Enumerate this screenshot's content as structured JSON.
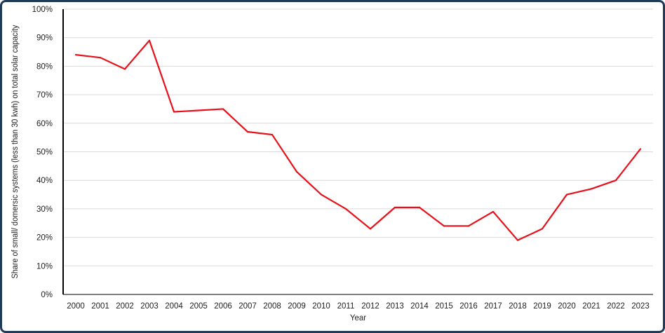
{
  "chart_data": {
    "type": "line",
    "xlabel": "Year",
    "ylabel": "Share of small/ domersic systems (less than 30 kwh) on total solar capacity",
    "ylim": [
      0,
      100
    ],
    "yticks": [
      "0%",
      "10%",
      "20%",
      "30%",
      "40%",
      "50%",
      "60%",
      "70%",
      "80%",
      "90%",
      "100%"
    ],
    "grid": true,
    "categories": [
      "2000",
      "2001",
      "2002",
      "2003",
      "2004",
      "2005",
      "2006",
      "2007",
      "2008",
      "2009",
      "2010",
      "2011",
      "2012",
      "2013",
      "2014",
      "2015",
      "2016",
      "2017",
      "2018",
      "2019",
      "2020",
      "2021",
      "2022",
      "2023"
    ],
    "series": [
      {
        "color": "#e8101a",
        "values": [
          84,
          83,
          79,
          89,
          64,
          64.5,
          65,
          57,
          56,
          43,
          35,
          30,
          23,
          30.5,
          30.5,
          24,
          24,
          29,
          19,
          23,
          35,
          37,
          40,
          51
        ]
      }
    ]
  }
}
